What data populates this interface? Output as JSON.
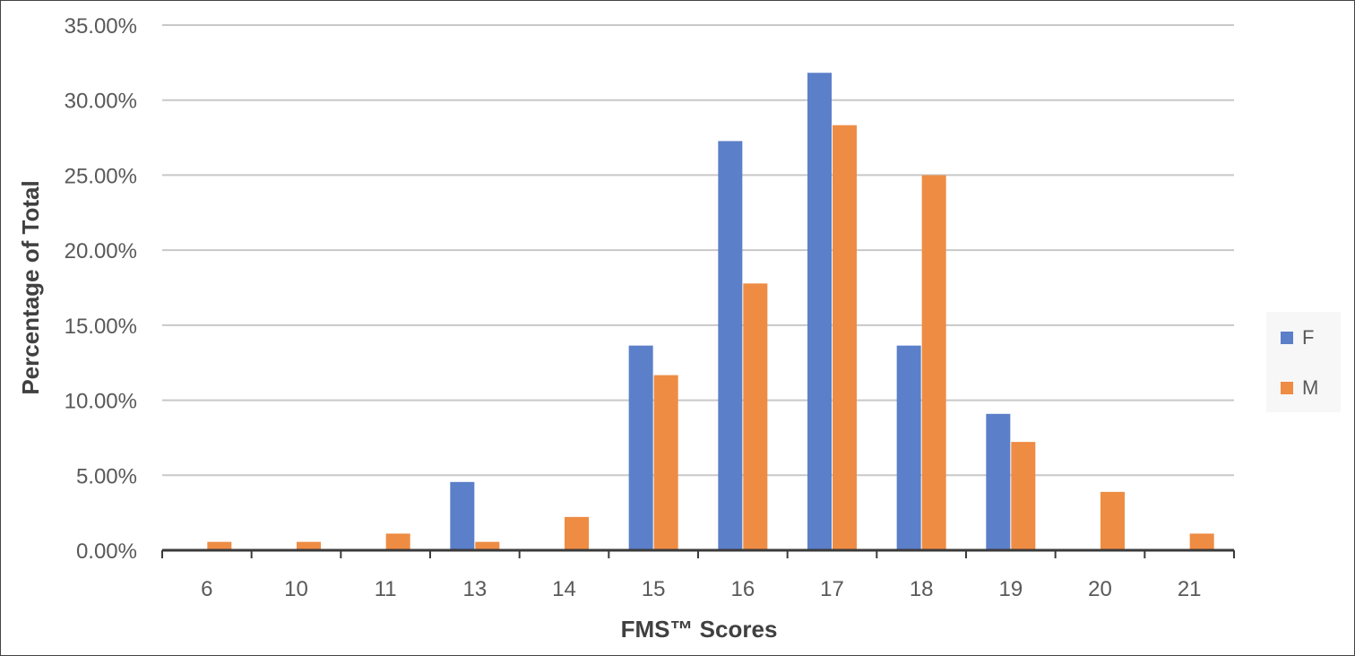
{
  "chart_data": {
    "type": "bar",
    "categories": [
      "6",
      "10",
      "11",
      "13",
      "14",
      "15",
      "16",
      "17",
      "18",
      "19",
      "20",
      "21"
    ],
    "series": [
      {
        "name": "F",
        "color": "#5b7fc9",
        "values": [
          0,
          0,
          0,
          4.55,
          0,
          13.64,
          27.27,
          31.82,
          13.64,
          9.09,
          0,
          0
        ]
      },
      {
        "name": "M",
        "color": "#ee8c44",
        "values": [
          0.56,
          0.56,
          1.11,
          0.56,
          2.22,
          11.67,
          17.78,
          28.33,
          25.0,
          7.22,
          3.89,
          1.11
        ]
      }
    ],
    "xlabel": "FMS™ Scores",
    "ylabel": "Percentage of Total",
    "ylim": [
      0,
      35
    ],
    "yticks": [
      "0.00%",
      "5.00%",
      "10.00%",
      "15.00%",
      "20.00%",
      "25.00%",
      "30.00%",
      "35.00%"
    ],
    "grid": true,
    "legend_position": "right"
  }
}
